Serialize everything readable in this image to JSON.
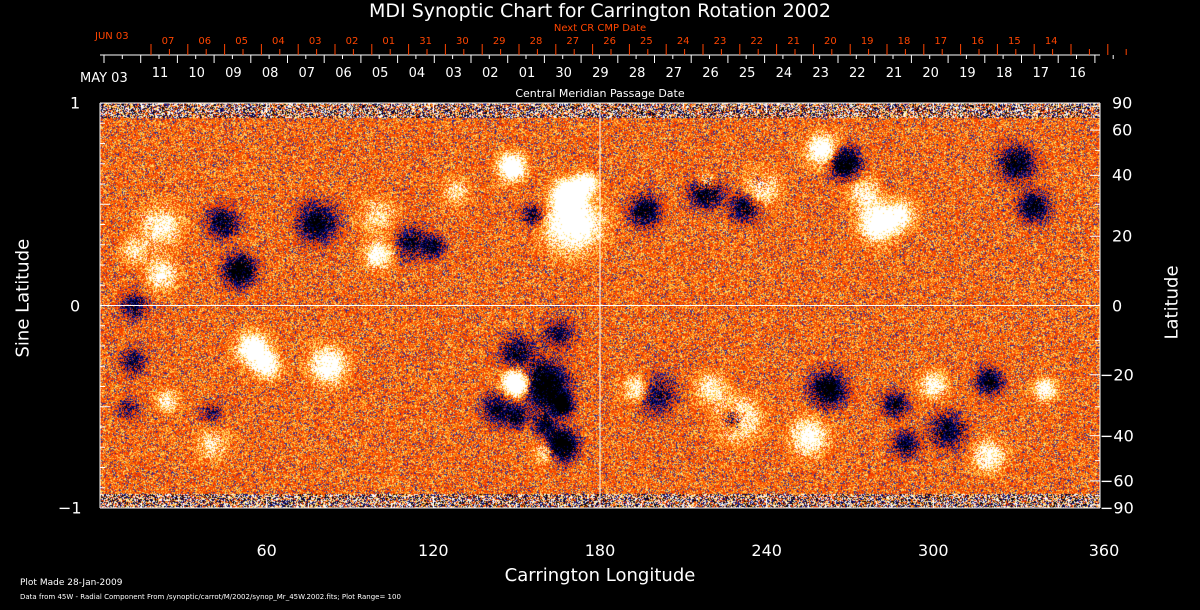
{
  "chart_data": {
    "type": "heatmap",
    "title": "MDI Synoptic Chart for Carrington Rotation 2002",
    "xlabel": "Carrington Longitude",
    "ylabel_left": "Sine Latitude",
    "ylabel_right": "Latitude",
    "xlim": [
      0,
      360
    ],
    "ylim": [
      -1,
      1
    ],
    "x_ticks": [
      "60",
      "120",
      "180",
      "240",
      "300",
      "360"
    ],
    "y_ticks_left": [
      "1",
      "0",
      "−1"
    ],
    "y_ticks_right": [
      "90",
      "60",
      "40",
      "20",
      "0",
      "−20",
      "−40",
      "−60",
      "−90"
    ],
    "top_axis_label": "Central Meridian Passage Date",
    "top_axis_start": "MAY 03",
    "top_axis_dates": [
      "11",
      "10",
      "09",
      "08",
      "07",
      "06",
      "05",
      "04",
      "03",
      "02",
      "01",
      "30",
      "29",
      "28",
      "27",
      "26",
      "25",
      "24",
      "23",
      "22",
      "21",
      "20",
      "19",
      "18",
      "17",
      "16"
    ],
    "next_axis_label": "Next CR CMP Date",
    "next_axis_start": "JUN 03",
    "next_axis_dates": [
      "07",
      "06",
      "05",
      "04",
      "03",
      "02",
      "01",
      "31",
      "30",
      "29",
      "28",
      "27",
      "26",
      "25",
      "24",
      "23",
      "22",
      "21",
      "20",
      "19",
      "18",
      "17",
      "16",
      "15",
      "14"
    ],
    "plot_range": 100,
    "colormap": [
      "#000040",
      "#1a1a80",
      "#ff3000",
      "#ff8000",
      "#ffff80",
      "#ffffff"
    ],
    "grid": "crosshair at 180 longitude and 0 latitude"
  },
  "footer": {
    "plot_made": "Plot Made 28-Jan-2009",
    "source": "Data from 45W - Radial Component From /synoptic/carrot/M/2002/synop_Mr_45W.2002.fits; Plot Range=  100"
  }
}
